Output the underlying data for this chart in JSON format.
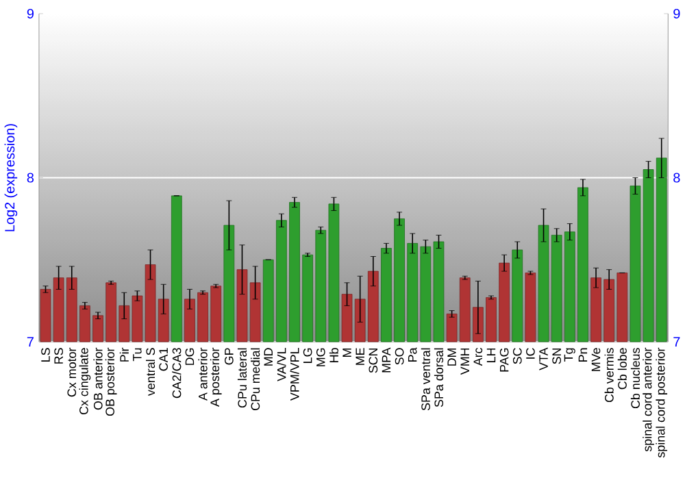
{
  "chart_data": {
    "type": "bar",
    "ylabel": "Log2 (expression)",
    "categories": [
      "LS",
      "RS",
      "Cx motor",
      "Cx cingulate",
      "OB anterior",
      "OB posterior",
      "Pir",
      "Tu",
      "ventral S",
      "CA1",
      "CA2/CA3",
      "DG",
      "A anterior",
      "A posterior",
      "GP",
      "CPu lateral",
      "CPu medial",
      "MD",
      "VA/VL",
      "VPM/VPL",
      "LG",
      "MG",
      "Hb",
      "M",
      "ME",
      "SCN",
      "MPA",
      "SO",
      "Pa",
      "SPa ventral",
      "SPa dorsal",
      "DM",
      "VMH",
      "Arc",
      "LH",
      "PAG",
      "SC",
      "IC",
      "VTA",
      "SN",
      "Tg",
      "Pn",
      "MVe",
      "Cb vermis",
      "Cb lobe",
      "Cb nucleus",
      "spinal cord anterior",
      "spinal cord posterior"
    ],
    "values": [
      7.32,
      7.39,
      7.39,
      7.22,
      7.16,
      7.36,
      7.22,
      7.28,
      7.47,
      7.26,
      7.89,
      7.26,
      7.3,
      7.34,
      7.71,
      7.44,
      7.36,
      7.5,
      7.74,
      7.85,
      7.53,
      7.68,
      7.84,
      7.29,
      7.26,
      7.43,
      7.57,
      7.75,
      7.6,
      7.58,
      7.61,
      7.17,
      7.39,
      7.21,
      7.27,
      7.48,
      7.56,
      7.42,
      7.71,
      7.65,
      7.67,
      7.94,
      7.39,
      7.38,
      7.42,
      7.95,
      8.05,
      8.12
    ],
    "errors": [
      0.02,
      0.07,
      0.07,
      0.02,
      0.02,
      0.01,
      0.08,
      0.03,
      0.09,
      0.09,
      0,
      0.06,
      0.01,
      0.01,
      0.15,
      0.15,
      0.1,
      0,
      0.04,
      0.03,
      0.01,
      0.02,
      0.04,
      0.07,
      0.14,
      0.09,
      0.03,
      0.04,
      0.06,
      0.04,
      0.04,
      0.02,
      0.01,
      0.16,
      0.01,
      0.05,
      0.05,
      0.01,
      0.1,
      0.04,
      0.05,
      0.05,
      0.06,
      0.06,
      0,
      0.05,
      0.05,
      0.12
    ],
    "colors": [
      "#b03434",
      "#b03434",
      "#b03434",
      "#b03434",
      "#b03434",
      "#b03434",
      "#b03434",
      "#b03434",
      "#b03434",
      "#b03434",
      "#2e9e2e",
      "#b03434",
      "#b03434",
      "#b03434",
      "#2e9e2e",
      "#b03434",
      "#b03434",
      "#2e9e2e",
      "#2e9e2e",
      "#2e9e2e",
      "#2e9e2e",
      "#2e9e2e",
      "#2e9e2e",
      "#b03434",
      "#b03434",
      "#b03434",
      "#2e9e2e",
      "#2e9e2e",
      "#2e9e2e",
      "#2e9e2e",
      "#2e9e2e",
      "#b03434",
      "#b03434",
      "#b03434",
      "#b03434",
      "#b03434",
      "#2e9e2e",
      "#b03434",
      "#2e9e2e",
      "#2e9e2e",
      "#2e9e2e",
      "#2e9e2e",
      "#b03434",
      "#b03434",
      "#b03434",
      "#2e9e2e",
      "#2e9e2e",
      "#2e9e2e"
    ],
    "ylim": [
      7,
      9
    ],
    "yticks": [
      7,
      8,
      9
    ],
    "y2lim": [
      7,
      9
    ],
    "y2ticks": [
      7,
      8,
      9
    ],
    "grid": "y"
  }
}
